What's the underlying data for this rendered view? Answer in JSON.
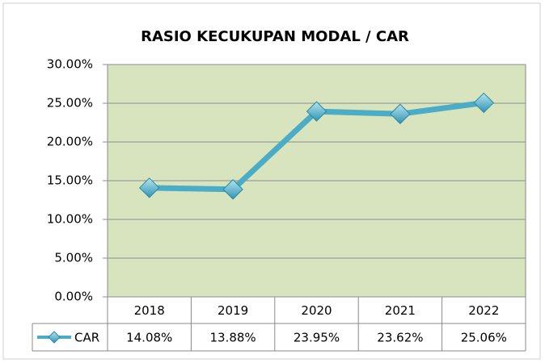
{
  "chart_data": {
    "type": "line",
    "title": "RASIO KECUKUPAN MODAL / CAR",
    "categories": [
      "2018",
      "2019",
      "2020",
      "2021",
      "2022"
    ],
    "series": [
      {
        "name": "CAR",
        "color": "#4bacc6",
        "values": [
          14.08,
          13.88,
          23.95,
          23.62,
          25.06
        ],
        "value_labels": [
          "14.08%",
          "13.88%",
          "23.95%",
          "23.62%",
          "25.06%"
        ]
      }
    ],
    "ylim": [
      0,
      30
    ],
    "yticks": [
      {
        "value": 0,
        "label": "0.00%"
      },
      {
        "value": 5,
        "label": "5.00%"
      },
      {
        "value": 10,
        "label": "10.00%"
      },
      {
        "value": 15,
        "label": "15.00%"
      },
      {
        "value": 20,
        "label": "20.00%"
      },
      {
        "value": 25,
        "label": "25.00%"
      },
      {
        "value": 30,
        "label": "30.00%"
      }
    ],
    "grid": true,
    "plot_background": "#d7e4bd"
  }
}
